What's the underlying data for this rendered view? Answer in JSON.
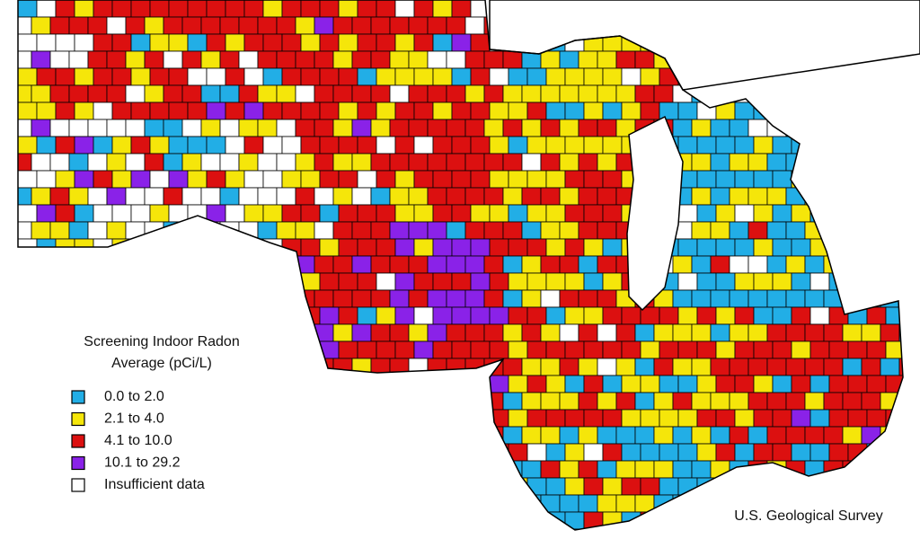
{
  "legend": {
    "title_lines": [
      "Screening Indoor Radon",
      "Average (pCi/L)"
    ],
    "items": [
      {
        "label": "0.0 to 2.0",
        "color": "#22aee6"
      },
      {
        "label": "2.1 to 4.0",
        "color": "#f5e60a"
      },
      {
        "label": "4.1 to 10.0",
        "color": "#dc1010"
      },
      {
        "label": "10.1 to 29.2",
        "color": "#8a22e8"
      },
      {
        "label": "Insufficient data",
        "color": "#ffffff"
      }
    ]
  },
  "credit": "U.S. Geological Survey"
}
